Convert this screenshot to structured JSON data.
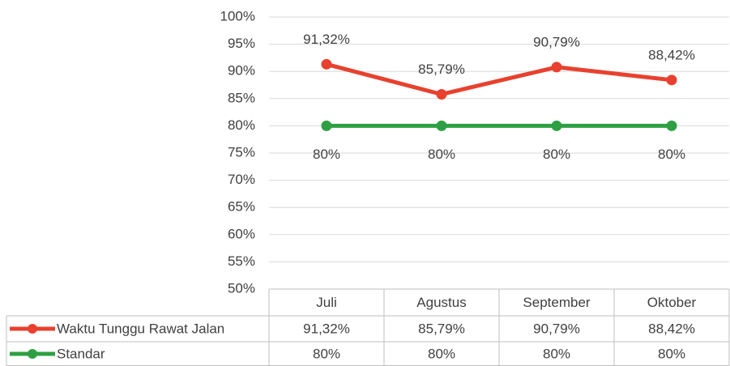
{
  "chart_data": {
    "type": "line",
    "categories": [
      "Juli",
      "Agustus",
      "September",
      "Oktober"
    ],
    "series": [
      {
        "name": "Waktu Tunggu Rawat Jalan",
        "color": "#e8412f",
        "values": [
          91.32,
          85.79,
          90.79,
          88.42
        ],
        "value_labels": [
          "91,32%",
          "85,79%",
          "90,79%",
          "88,42%"
        ]
      },
      {
        "name": "Standar",
        "color": "#2ea043",
        "values": [
          80,
          80,
          80,
          80
        ],
        "value_labels": [
          "80%",
          "80%",
          "80%",
          "80%"
        ]
      }
    ],
    "ylim": [
      50,
      100
    ],
    "yticks": [
      {
        "value": 50,
        "label": "50%"
      },
      {
        "value": 55,
        "label": "55%"
      },
      {
        "value": 60,
        "label": "60%"
      },
      {
        "value": 65,
        "label": "65%"
      },
      {
        "value": 70,
        "label": "70%"
      },
      {
        "value": 75,
        "label": "75%"
      },
      {
        "value": 80,
        "label": "80%"
      },
      {
        "value": 85,
        "label": "85%"
      },
      {
        "value": 90,
        "label": "90%"
      },
      {
        "value": 95,
        "label": "95%"
      },
      {
        "value": 100,
        "label": "100%"
      }
    ],
    "grid": true,
    "data_table": true
  }
}
